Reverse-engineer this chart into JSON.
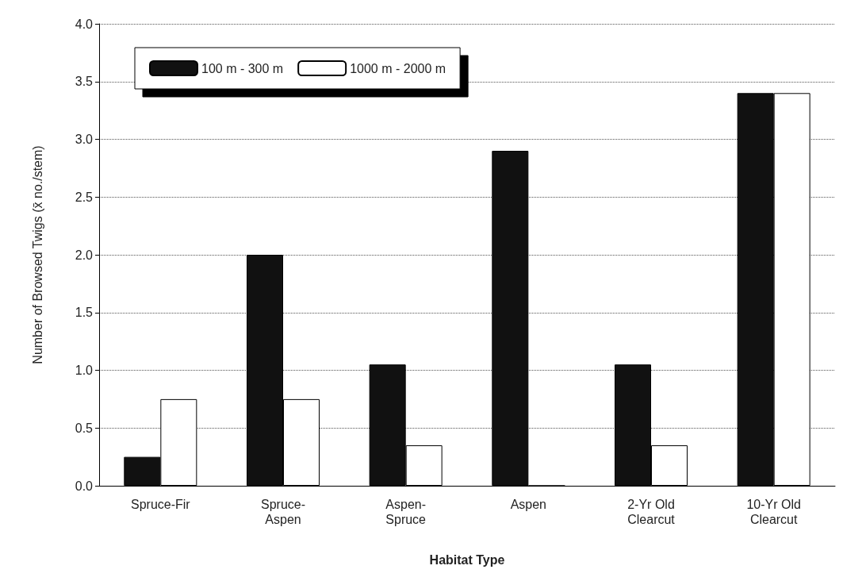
{
  "chart_data": {
    "type": "bar",
    "xlabel": "Habitat Type",
    "ylabel": "Number of Browsed Twigs (x̄ no./stem)",
    "categories": [
      "Spruce-Fir",
      "Spruce-\nAspen",
      "Aspen-\nSpruce",
      "Aspen",
      "2-Yr Old\nClearcut",
      "10-Yr Old\nClearcut"
    ],
    "series": [
      {
        "name": "100 m - 300 m",
        "color": "#111111",
        "values": [
          0.25,
          2.0,
          1.05,
          2.9,
          1.05,
          3.4
        ]
      },
      {
        "name": "1000 m - 2000 m",
        "color": "#ffffff",
        "values": [
          0.75,
          0.75,
          0.35,
          0,
          0.35,
          3.4
        ]
      }
    ],
    "ylim": [
      0,
      4
    ],
    "yticks": [
      {
        "value": 0,
        "label": "0.0"
      },
      {
        "value": 0.5,
        "label": "0.5"
      },
      {
        "value": 1,
        "label": "1.0"
      },
      {
        "value": 1.5,
        "label": "1.5"
      },
      {
        "value": 2,
        "label": "2.0"
      },
      {
        "value": 2.5,
        "label": "2.5"
      },
      {
        "value": 3,
        "label": "3.0"
      },
      {
        "value": 3.5,
        "label": "3.5"
      },
      {
        "value": 4,
        "label": "4.0"
      }
    ],
    "grid": "y",
    "legend": "top left"
  }
}
